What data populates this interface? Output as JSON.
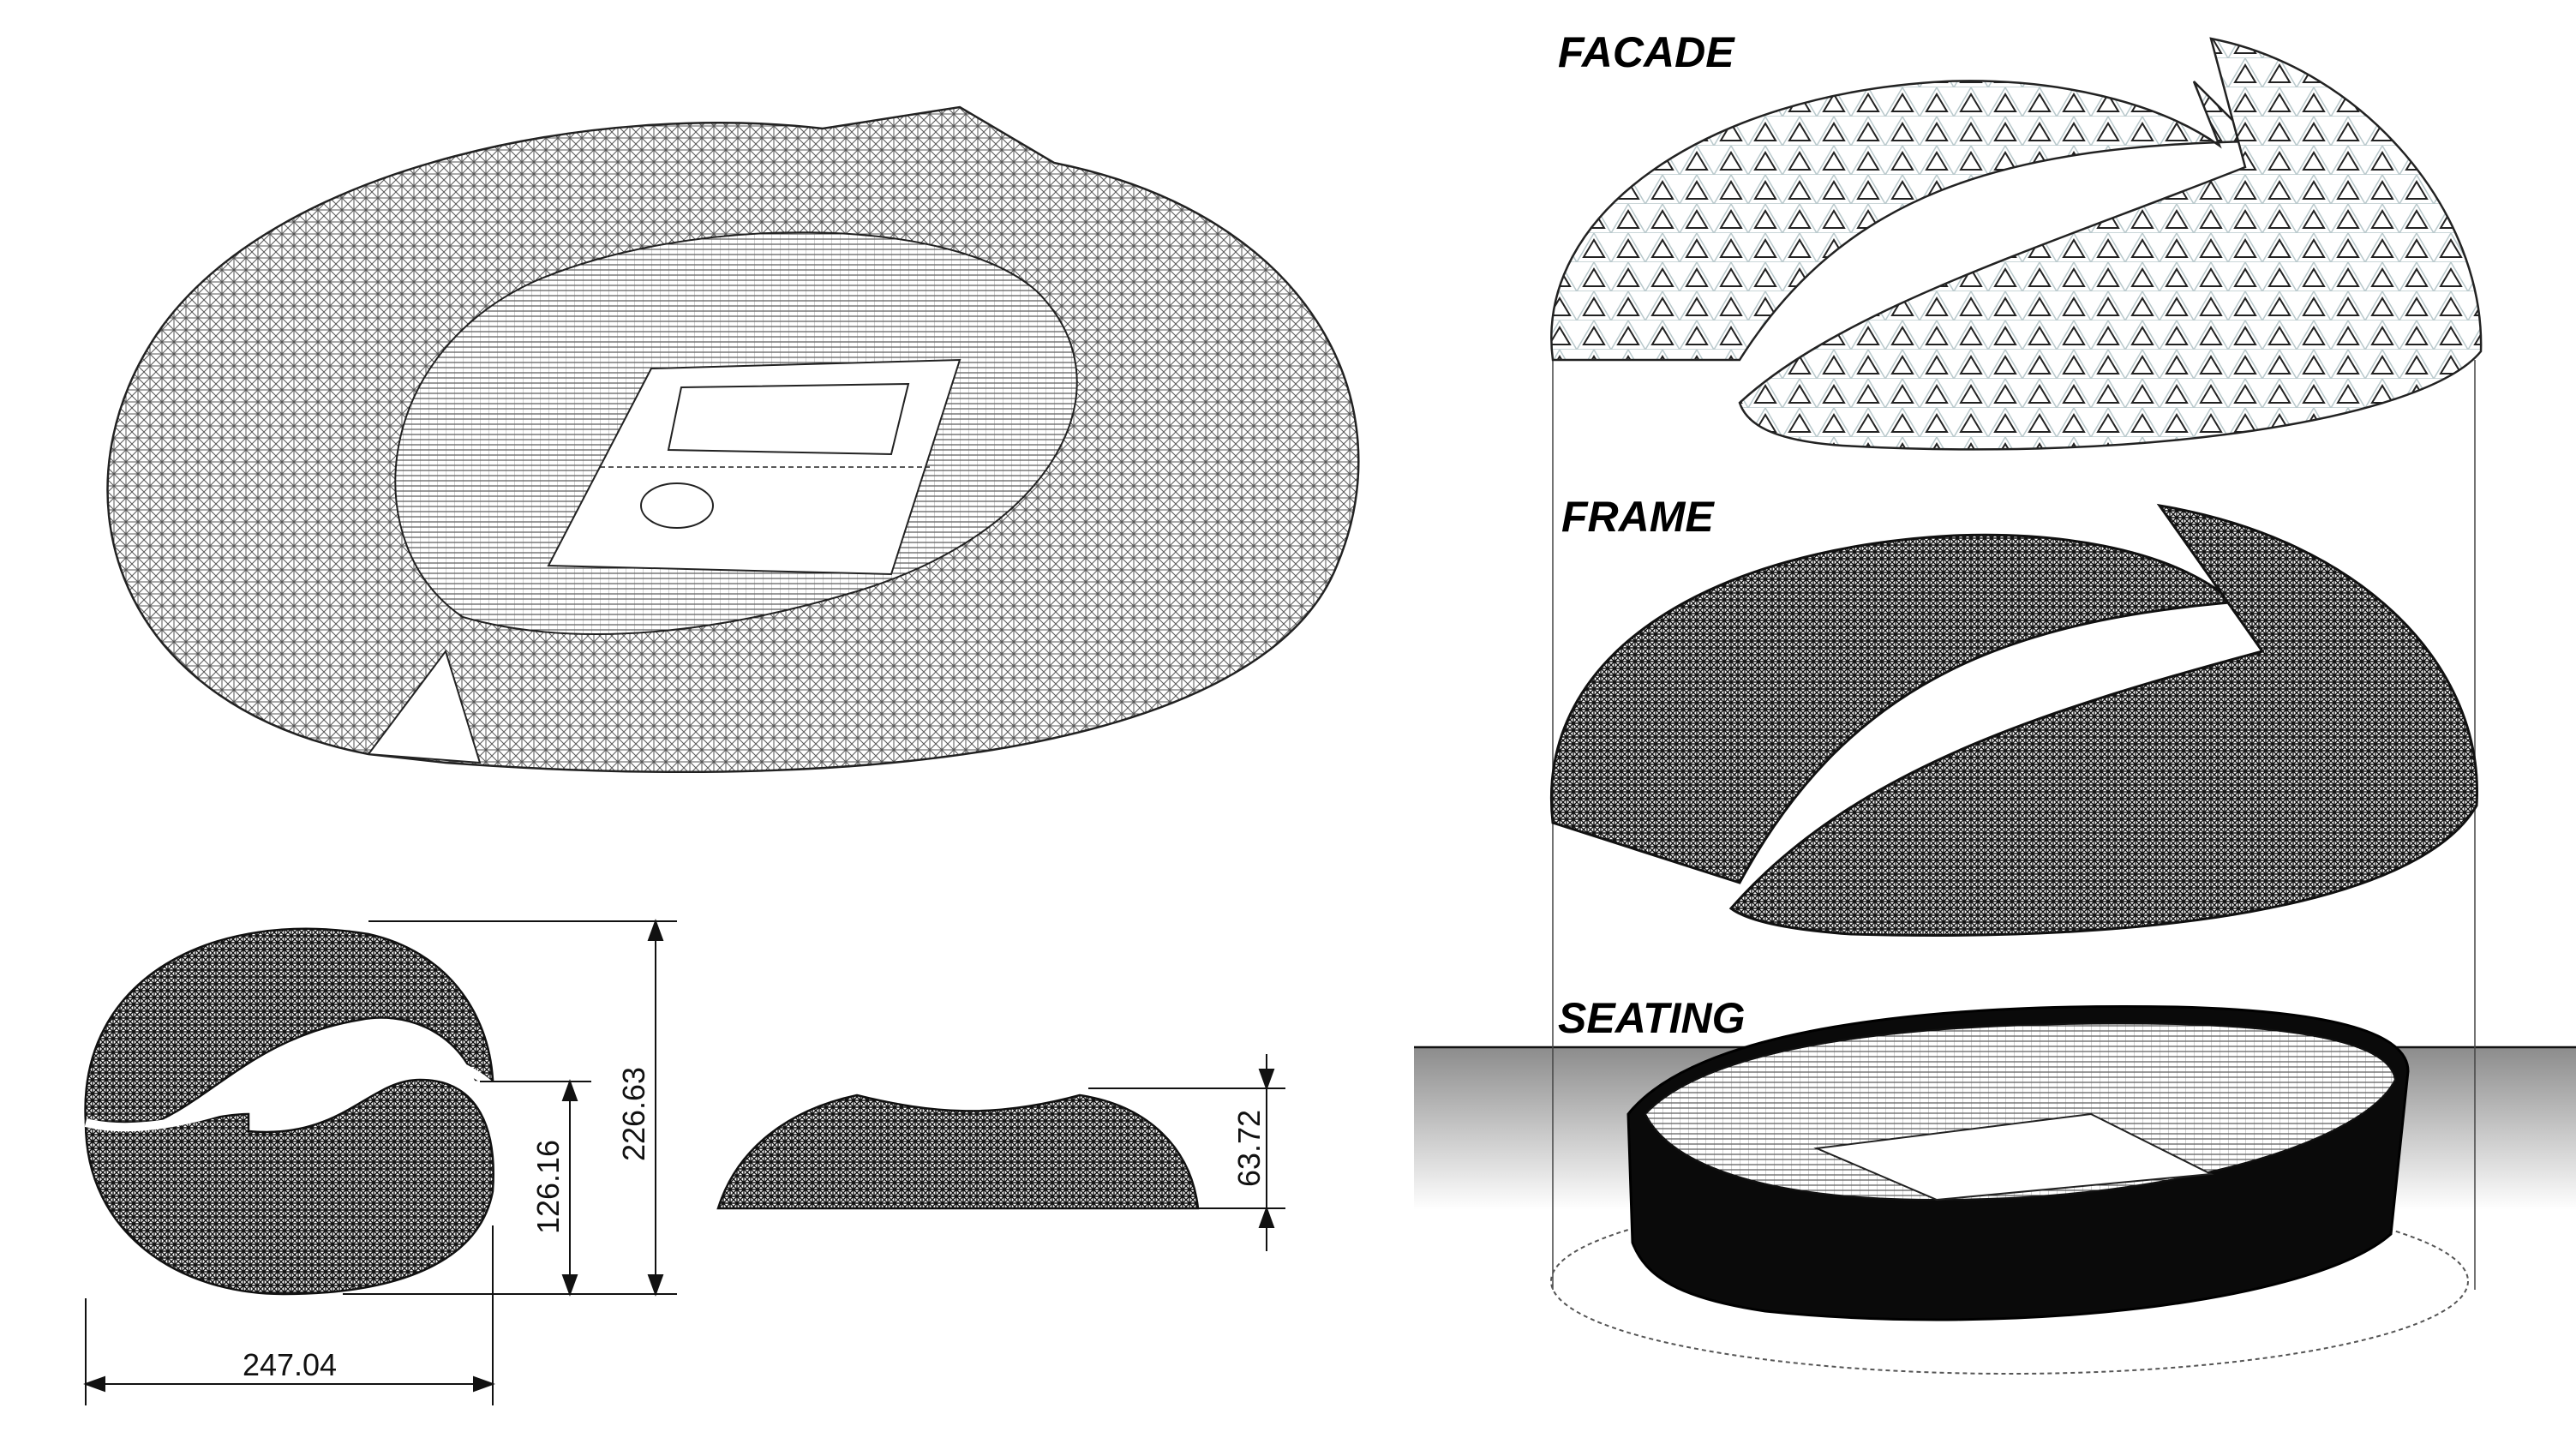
{
  "layers": {
    "facade": "FACADE",
    "frame": "FRAME",
    "seating": "SEATING"
  },
  "dimensions": {
    "plan_width": "247.04",
    "plan_height": "226.63",
    "plan_opening": "126.16",
    "elevation_height": "63.72"
  },
  "colors": {
    "ink": "#000000",
    "mesh": "#444444",
    "glass": "#b9c9cc",
    "ground_top": "#8c8c8c",
    "ground_bottom": "#ffffff"
  }
}
